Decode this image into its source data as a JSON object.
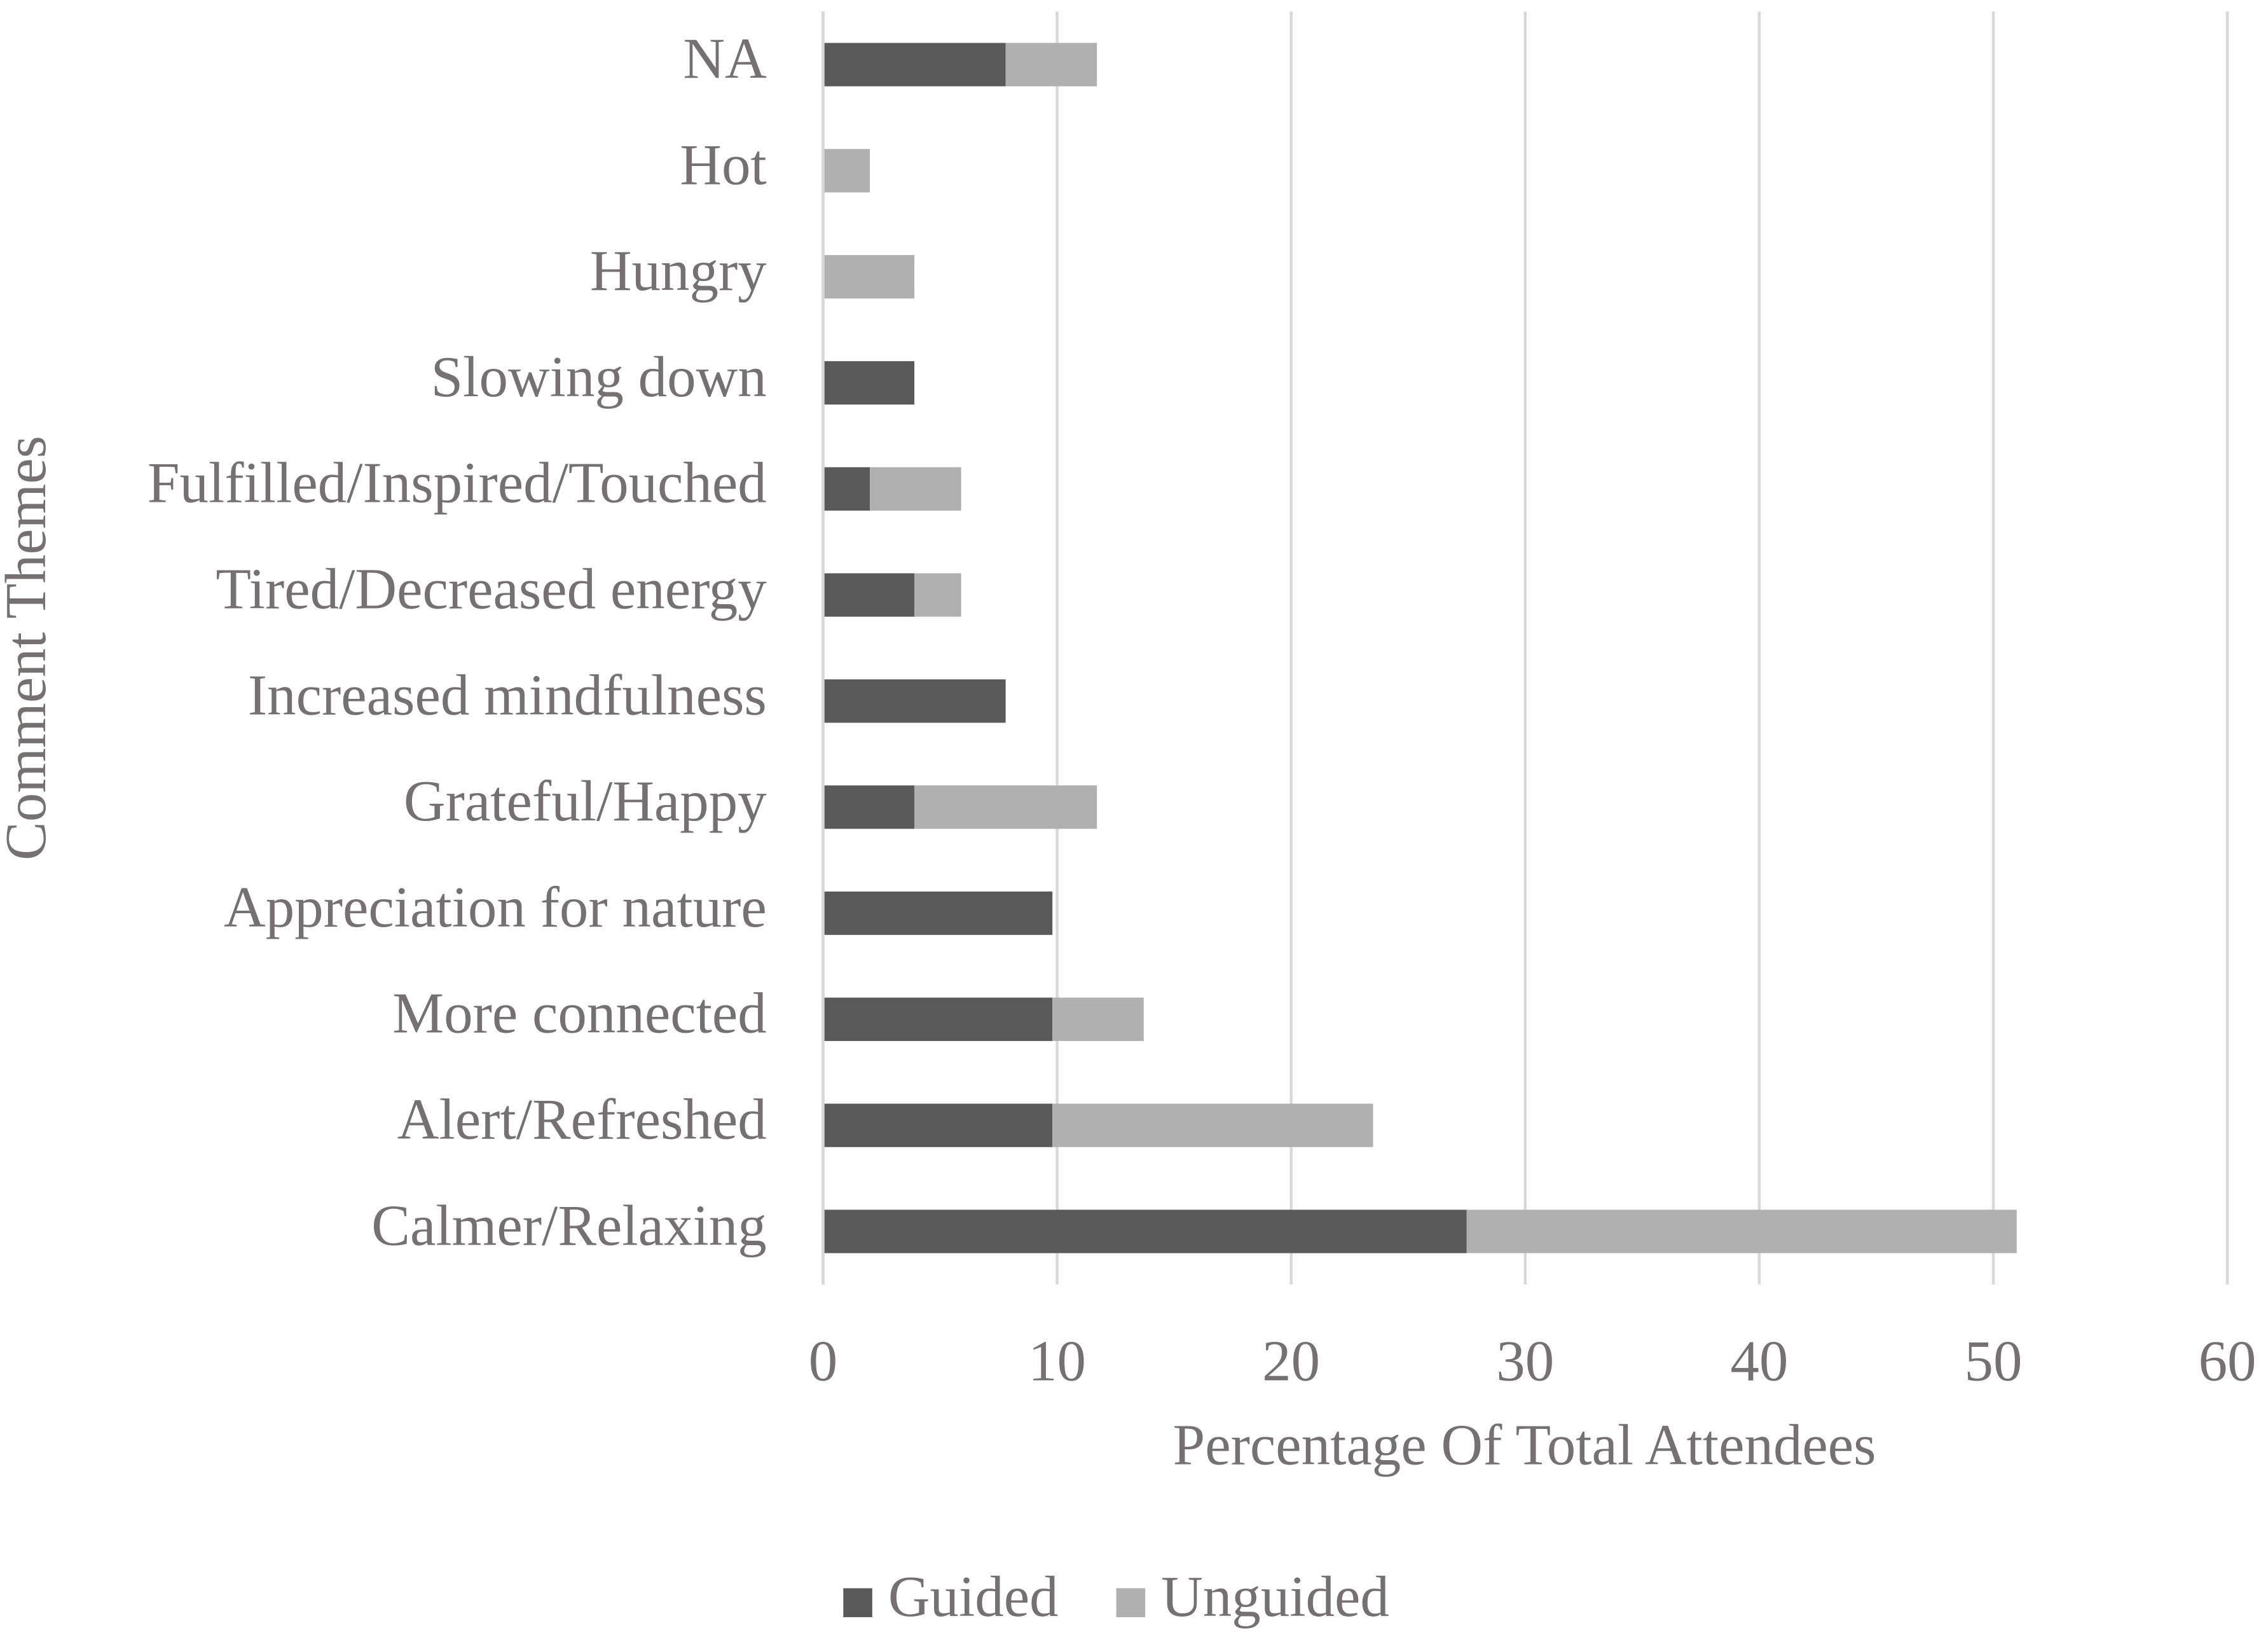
{
  "chart_data": {
    "type": "stacked-bar-horizontal",
    "xlabel": "Percentage Of Total Attendees",
    "ylabel": "Comment Themes",
    "categories": [
      "NA",
      "Hot",
      "Hungry",
      "Slowing down",
      "Fulfilled/Inspired/Touched",
      "Tired/Decreased energy",
      "Increased mindfulness",
      "Grateful/Happy",
      "Appreciation for nature",
      "More connected",
      "Alert/Refreshed",
      "Calmer/Relaxing"
    ],
    "series": [
      {
        "name": "Guided",
        "color": "#595959",
        "values": [
          7.8,
          0,
          0,
          3.9,
          2.0,
          3.9,
          7.8,
          3.9,
          9.8,
          9.8,
          9.8,
          27.5
        ]
      },
      {
        "name": "Unguided",
        "color": "#b0b0b0",
        "values": [
          3.9,
          2.0,
          3.9,
          0,
          3.9,
          2.0,
          0,
          7.8,
          0,
          3.9,
          13.7,
          23.5
        ]
      }
    ],
    "xlim": [
      0,
      60
    ],
    "xticks": [
      0,
      10,
      20,
      30,
      40,
      50,
      60
    ],
    "grid": true,
    "legend": "bottom"
  }
}
